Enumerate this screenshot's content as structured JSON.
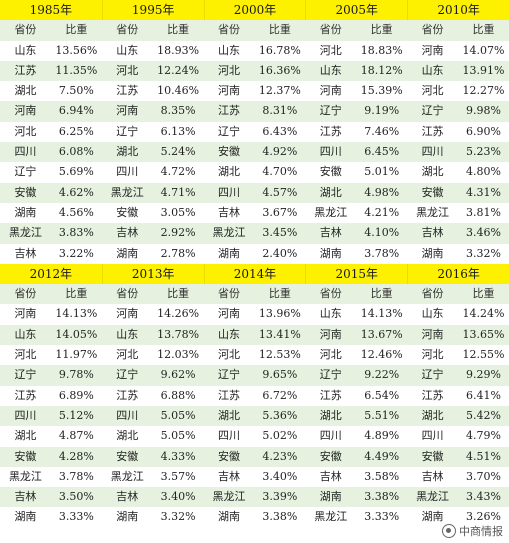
{
  "tables": [
    {
      "years": [
        "1985年",
        "1995年",
        "2000年",
        "2005年",
        "2010年"
      ],
      "header": [
        "省份",
        "比重"
      ],
      "rows": [
        [
          [
            "山东",
            "13.56%"
          ],
          [
            "山东",
            "18.93%"
          ],
          [
            "山东",
            "16.78%"
          ],
          [
            "河北",
            "18.83%"
          ],
          [
            "河南",
            "14.07%"
          ]
        ],
        [
          [
            "江苏",
            "11.35%"
          ],
          [
            "河北",
            "12.24%"
          ],
          [
            "河北",
            "16.36%"
          ],
          [
            "山东",
            "18.12%"
          ],
          [
            "山东",
            "13.91%"
          ]
        ],
        [
          [
            "湖北",
            "7.50%"
          ],
          [
            "江苏",
            "10.46%"
          ],
          [
            "河南",
            "12.37%"
          ],
          [
            "河南",
            "15.39%"
          ],
          [
            "河北",
            "12.27%"
          ]
        ],
        [
          [
            "河南",
            "6.94%"
          ],
          [
            "河南",
            "8.35%"
          ],
          [
            "江苏",
            "8.31%"
          ],
          [
            "辽宁",
            "9.19%"
          ],
          [
            "辽宁",
            "9.98%"
          ]
        ],
        [
          [
            "河北",
            "6.25%"
          ],
          [
            "辽宁",
            "6.13%"
          ],
          [
            "辽宁",
            "6.43%"
          ],
          [
            "江苏",
            "7.46%"
          ],
          [
            "江苏",
            "6.90%"
          ]
        ],
        [
          [
            "四川",
            "6.08%"
          ],
          [
            "湖北",
            "5.24%"
          ],
          [
            "安徽",
            "4.92%"
          ],
          [
            "四川",
            "6.45%"
          ],
          [
            "四川",
            "5.23%"
          ]
        ],
        [
          [
            "辽宁",
            "5.69%"
          ],
          [
            "四川",
            "4.72%"
          ],
          [
            "湖北",
            "4.70%"
          ],
          [
            "安徽",
            "5.01%"
          ],
          [
            "湖北",
            "4.80%"
          ]
        ],
        [
          [
            "安徽",
            "4.62%"
          ],
          [
            "黑龙江",
            "4.71%"
          ],
          [
            "四川",
            "4.57%"
          ],
          [
            "湖北",
            "4.98%"
          ],
          [
            "安徽",
            "4.31%"
          ]
        ],
        [
          [
            "湖南",
            "4.56%"
          ],
          [
            "安徽",
            "3.05%"
          ],
          [
            "吉林",
            "3.67%"
          ],
          [
            "黑龙江",
            "4.21%"
          ],
          [
            "黑龙江",
            "3.81%"
          ]
        ],
        [
          [
            "黑龙江",
            "3.83%"
          ],
          [
            "吉林",
            "2.92%"
          ],
          [
            "黑龙江",
            "3.45%"
          ],
          [
            "吉林",
            "4.10%"
          ],
          [
            "吉林",
            "3.46%"
          ]
        ],
        [
          [
            "吉林",
            "3.22%"
          ],
          [
            "湖南",
            "2.78%"
          ],
          [
            "湖南",
            "2.40%"
          ],
          [
            "湖南",
            "3.78%"
          ],
          [
            "湖南",
            "3.32%"
          ]
        ]
      ]
    },
    {
      "years": [
        "2012年",
        "2013年",
        "2014年",
        "2015年",
        "2016年"
      ],
      "header": [
        "省份",
        "比重"
      ],
      "rows": [
        [
          [
            "河南",
            "14.13%"
          ],
          [
            "河南",
            "14.26%"
          ],
          [
            "河南",
            "13.96%"
          ],
          [
            "山东",
            "14.13%"
          ],
          [
            "山东",
            "14.24%"
          ]
        ],
        [
          [
            "山东",
            "14.05%"
          ],
          [
            "山东",
            "13.78%"
          ],
          [
            "山东",
            "13.41%"
          ],
          [
            "河南",
            "13.67%"
          ],
          [
            "河南",
            "13.65%"
          ]
        ],
        [
          [
            "河北",
            "11.97%"
          ],
          [
            "河北",
            "12.03%"
          ],
          [
            "河北",
            "12.53%"
          ],
          [
            "河北",
            "12.46%"
          ],
          [
            "河北",
            "12.55%"
          ]
        ],
        [
          [
            "辽宁",
            "9.78%"
          ],
          [
            "辽宁",
            "9.62%"
          ],
          [
            "辽宁",
            "9.65%"
          ],
          [
            "辽宁",
            "9.22%"
          ],
          [
            "辽宁",
            "9.29%"
          ]
        ],
        [
          [
            "江苏",
            "6.89%"
          ],
          [
            "江苏",
            "6.88%"
          ],
          [
            "江苏",
            "6.72%"
          ],
          [
            "江苏",
            "6.54%"
          ],
          [
            "江苏",
            "6.41%"
          ]
        ],
        [
          [
            "四川",
            "5.12%"
          ],
          [
            "四川",
            "5.05%"
          ],
          [
            "湖北",
            "5.36%"
          ],
          [
            "湖北",
            "5.51%"
          ],
          [
            "湖北",
            "5.42%"
          ]
        ],
        [
          [
            "湖北",
            "4.87%"
          ],
          [
            "湖北",
            "5.05%"
          ],
          [
            "四川",
            "5.02%"
          ],
          [
            "四川",
            "4.89%"
          ],
          [
            "四川",
            "4.79%"
          ]
        ],
        [
          [
            "安徽",
            "4.28%"
          ],
          [
            "安徽",
            "4.33%"
          ],
          [
            "安徽",
            "4.23%"
          ],
          [
            "安徽",
            "4.49%"
          ],
          [
            "安徽",
            "4.51%"
          ]
        ],
        [
          [
            "黑龙江",
            "3.78%"
          ],
          [
            "黑龙江",
            "3.57%"
          ],
          [
            "吉林",
            "3.40%"
          ],
          [
            "吉林",
            "3.58%"
          ],
          [
            "吉林",
            "3.70%"
          ]
        ],
        [
          [
            "吉林",
            "3.50%"
          ],
          [
            "吉林",
            "3.40%"
          ],
          [
            "黑龙江",
            "3.39%"
          ],
          [
            "湖南",
            "3.38%"
          ],
          [
            "黑龙江",
            "3.43%"
          ]
        ],
        [
          [
            "湖南",
            "3.33%"
          ],
          [
            "湖南",
            "3.32%"
          ],
          [
            "湖南",
            "3.38%"
          ],
          [
            "黑龙江",
            "3.33%"
          ],
          [
            "湖南",
            "3.26%"
          ]
        ]
      ]
    }
  ],
  "watermark": {
    "text": "中商情报",
    "icon": "wechat-icon"
  }
}
